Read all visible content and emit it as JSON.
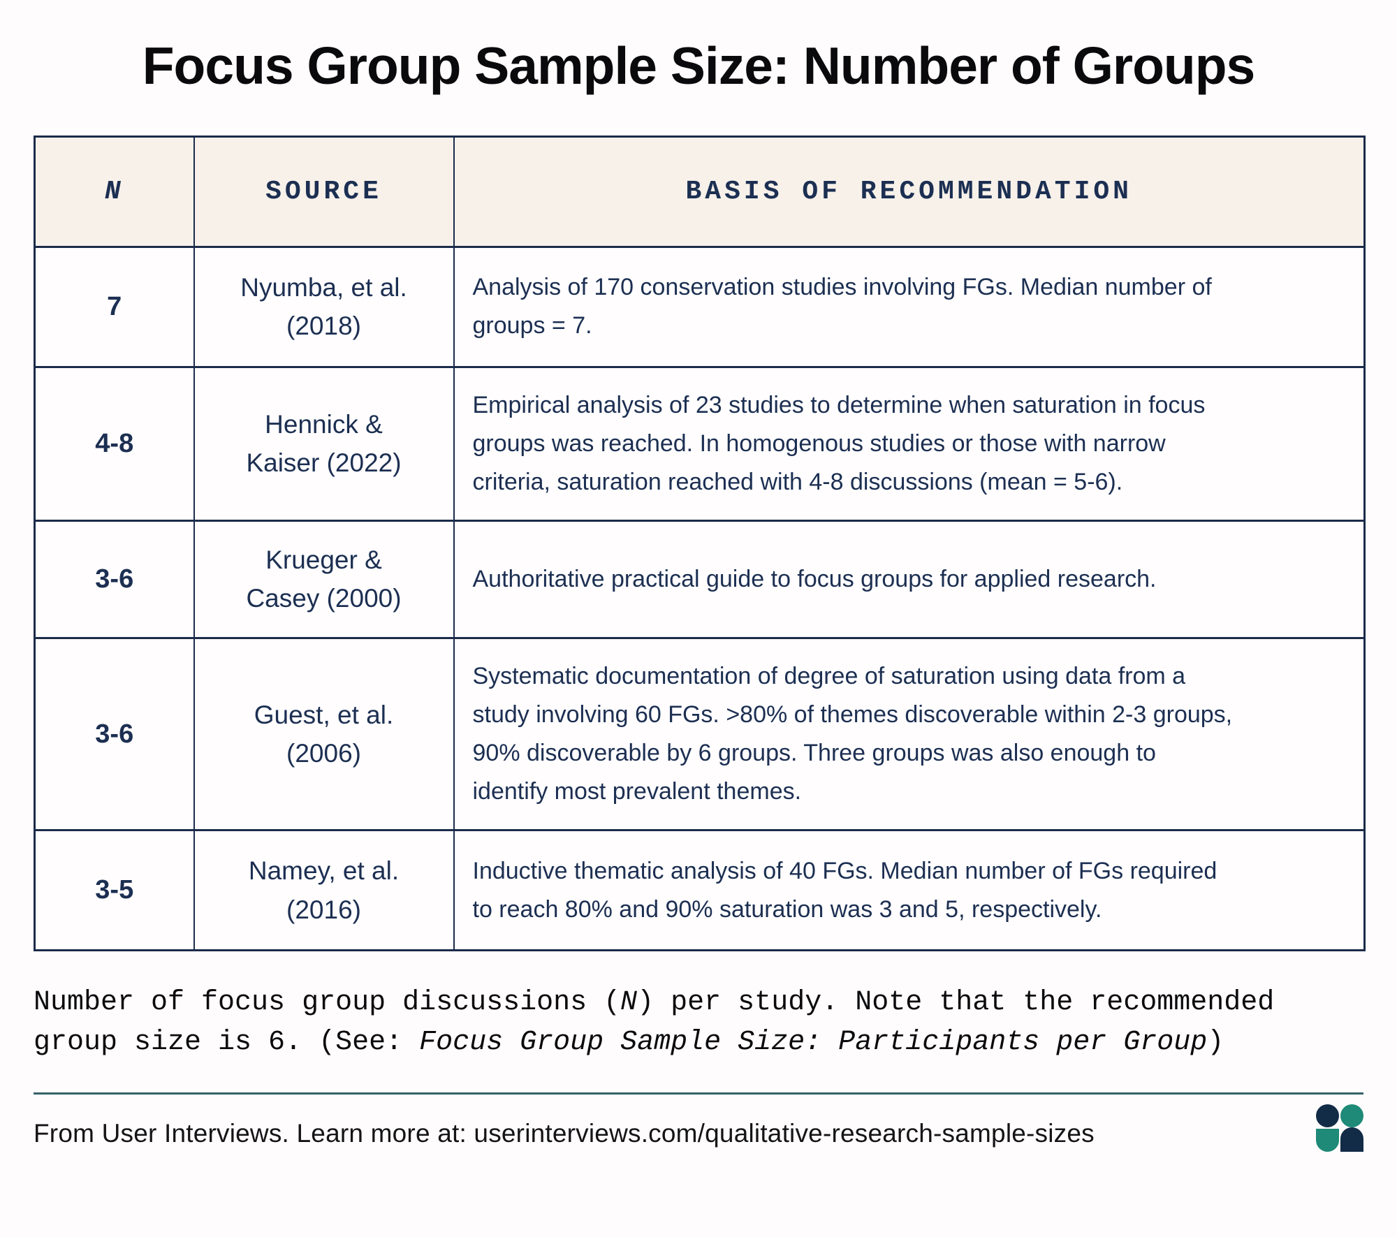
{
  "page": {
    "title": "Focus Group Sample Size: Number of Groups"
  },
  "table": {
    "headers": [
      "N",
      "SOURCE",
      "BASIS OF RECOMMENDATION"
    ],
    "rows": [
      {
        "n": "7",
        "source": "Nyumba, et al.\n(2018)",
        "basis": "Analysis of 170 conservation studies involving FGs. Median number of\ngroups = 7."
      },
      {
        "n": "4-8",
        "source": "Hennick &\nKaiser (2022)",
        "basis": "Empirical analysis of 23 studies to determine when saturation in focus\ngroups was reached. In homogenous studies or those with narrow\ncriteria, saturation reached with 4-8 discussions (mean = 5-6)."
      },
      {
        "n": "3-6",
        "source": "Krueger &\nCasey (2000)",
        "basis": "Authoritative practical guide to focus groups for applied research."
      },
      {
        "n": "3-6",
        "source": "Guest, et al.\n(2006)",
        "basis": "Systematic documentation of degree of saturation using data from a\nstudy involving 60 FGs. >80% of themes discoverable within 2-3 groups,\n90% discoverable by 6 groups. Three groups was also enough to\nidentify most prevalent themes."
      },
      {
        "n": "3-5",
        "source": "Namey, et al.\n(2016)",
        "basis": "Inductive thematic analysis of 40 FGs. Median number of FGs required\nto reach 80% and 90% saturation was 3 and 5, respectively."
      }
    ]
  },
  "caption": {
    "part1": "Number of focus group discussions (",
    "italic_n": "N",
    "part2": ") per study. Note that the recommended\ngroup size is 6. (See: ",
    "italic_see": "Focus Group Sample Size: Participants per Group",
    "part3": ")"
  },
  "footer": {
    "attribution": "From User Interviews. Learn more at: userinterviews.com/qualitative-research-sample-sizes"
  },
  "colors": {
    "background": "#fffcfd",
    "header_cell_bg": "#f7f1ea",
    "table_border_navy": "#1b2b4a",
    "body_text_navy": "#1c2f52",
    "title_black": "#0a0a0c",
    "divider_teal": "#35616b",
    "logo_navy": "#122b47",
    "logo_teal": "#1e8a77"
  }
}
